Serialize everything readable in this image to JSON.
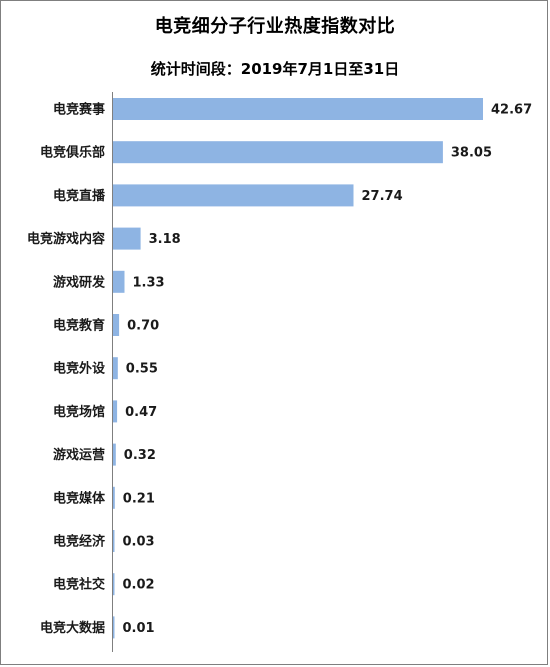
{
  "chart_data": {
    "type": "bar",
    "orientation": "horizontal",
    "title": "电竞细分子行业热度指数对比",
    "subtitle": "统计时间段：2019年7月1日至31日",
    "categories": [
      "电竞赛事",
      "电竞俱乐部",
      "电竞直播",
      "电竞游戏内容",
      "游戏研发",
      "电竞教育",
      "电竞外设",
      "电竞场馆",
      "游戏运营",
      "电竞媒体",
      "电竞经济",
      "电竞社交",
      "电竞大数据"
    ],
    "values": [
      42.67,
      38.05,
      27.74,
      3.18,
      1.33,
      0.7,
      0.55,
      0.47,
      0.32,
      0.21,
      0.03,
      0.02,
      0.01
    ],
    "value_labels": [
      "42.67",
      "38.05",
      "27.74",
      "3.18",
      "1.33",
      "0.70",
      "0.55",
      "0.47",
      "0.32",
      "0.21",
      "0.03",
      "0.02",
      "0.01"
    ],
    "xlim": [
      0,
      42.67
    ],
    "grid": false,
    "legend": "none",
    "bar_color": "#8eb4e3"
  }
}
